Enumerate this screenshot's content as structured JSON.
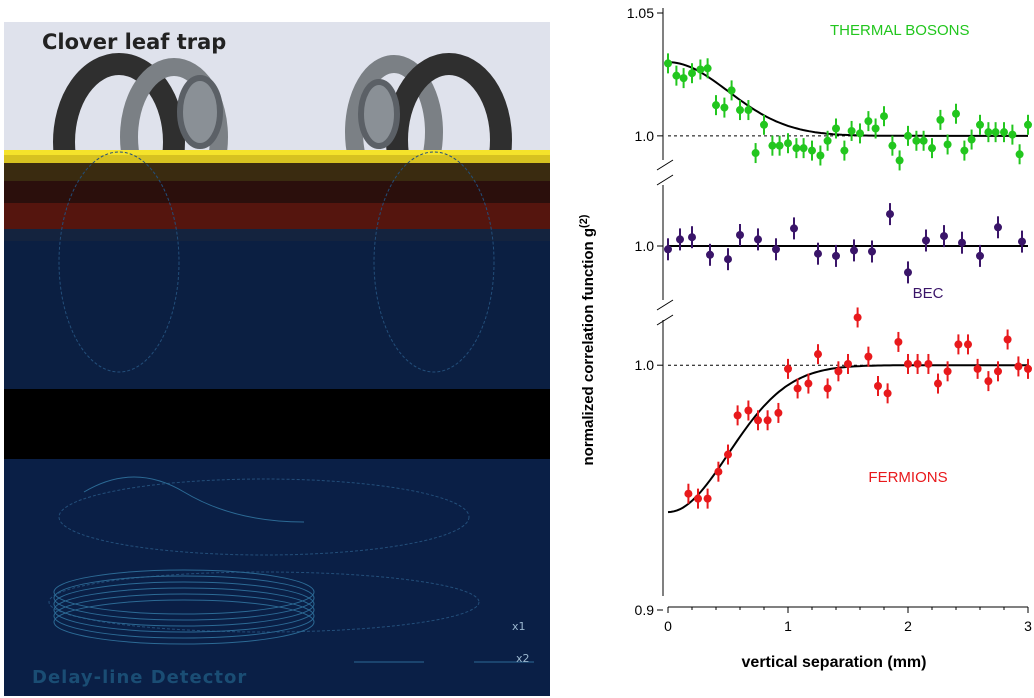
{
  "panel": {
    "title": "Clover leaf trap",
    "detector_label": "Delay-line Detector",
    "wire_label_1": "x1",
    "wire_label_2": "x2"
  },
  "chart_data": {
    "type": "scatter",
    "xlabel": "vertical separation (mm)",
    "ylabel": "normalized correlation function g(2)",
    "xlim": [
      0,
      3
    ],
    "x_ticks": [
      "0",
      "1",
      "2",
      "3"
    ],
    "panels": [
      {
        "name": "THERMAL BOSONS",
        "color": "#22c61e",
        "ylim": [
          0.98,
          1.05
        ],
        "y_ticks": [
          "1.05",
          "1.0"
        ],
        "fit": {
          "baseline": 1.0,
          "amplitude": 0.03,
          "width": 0.5
        },
        "x": [
          0.0,
          0.07,
          0.13,
          0.2,
          0.27,
          0.33,
          0.4,
          0.47,
          0.53,
          0.6,
          0.67,
          0.73,
          0.8,
          0.87,
          0.93,
          1.0,
          1.07,
          1.13,
          1.2,
          1.27,
          1.33,
          1.4,
          1.47,
          1.53,
          1.6,
          1.67,
          1.73,
          1.8,
          1.87,
          1.93,
          2.0,
          2.07,
          2.13,
          2.2,
          2.27,
          2.33,
          2.4,
          2.47,
          2.53,
          2.6,
          2.67,
          2.73,
          2.8,
          2.87,
          2.93,
          3.0
        ],
        "y": [
          1.0295,
          1.0245,
          1.0235,
          1.0255,
          1.027,
          1.0275,
          1.0125,
          1.0115,
          1.0185,
          1.0105,
          1.0105,
          0.993,
          1.0045,
          0.996,
          0.996,
          0.997,
          0.995,
          0.995,
          0.994,
          0.992,
          0.998,
          1.003,
          0.994,
          1.002,
          1.001,
          1.006,
          1.003,
          1.008,
          0.996,
          0.99,
          1.0,
          0.998,
          0.998,
          0.995,
          1.0065,
          0.9965,
          1.009,
          0.994,
          0.9985,
          1.0045,
          1.0015,
          1.0015,
          1.0015,
          1.0005,
          0.9925,
          1.0045
        ]
      },
      {
        "name": "BEC",
        "color": "#3a1569",
        "ylim": [
          0.97,
          1.03
        ],
        "y_ticks": [
          "1.0"
        ],
        "fit": {
          "baseline": 1.0,
          "amplitude": 0.0,
          "width": 0.5
        },
        "x": [
          0.0,
          0.1,
          0.2,
          0.35,
          0.5,
          0.6,
          0.75,
          0.9,
          1.05,
          1.25,
          1.4,
          1.55,
          1.7,
          1.85,
          2.0,
          2.15,
          2.3,
          2.45,
          2.6,
          2.75,
          2.95
        ],
        "y": [
          0.9985,
          1.003,
          1.004,
          0.996,
          0.994,
          1.005,
          1.003,
          0.9985,
          1.008,
          0.9965,
          0.9955,
          0.998,
          0.9975,
          1.0145,
          0.988,
          1.0025,
          1.0045,
          1.0015,
          0.9955,
          1.0085,
          1.002
        ]
      },
      {
        "name": "FERMIONS",
        "color": "#e8191c",
        "ylim": [
          0.9,
          1.025
        ],
        "y_ticks": [
          "1.0",
          "0.9"
        ],
        "fit": {
          "baseline": 1.0,
          "amplitude": -0.06,
          "width": 0.5
        },
        "x": [
          0.17,
          0.25,
          0.33,
          0.42,
          0.5,
          0.58,
          0.67,
          0.75,
          0.83,
          0.92,
          1.0,
          1.08,
          1.17,
          1.25,
          1.33,
          1.42,
          1.5,
          1.58,
          1.67,
          1.75,
          1.83,
          1.92,
          2.0,
          2.08,
          2.17,
          2.25,
          2.33,
          2.42,
          2.5,
          2.58,
          2.67,
          2.75,
          2.83,
          2.92,
          3.0
        ],
        "y": [
          0.9475,
          0.9455,
          0.9455,
          0.9565,
          0.9635,
          0.9795,
          0.9815,
          0.9775,
          0.9775,
          0.9805,
          0.9985,
          0.9905,
          0.9925,
          1.0045,
          0.9905,
          0.9975,
          1.0005,
          1.0195,
          1.0035,
          0.9915,
          0.9885,
          1.0095,
          1.0005,
          1.0005,
          1.0005,
          0.9925,
          0.9975,
          1.0085,
          1.0085,
          0.9985,
          0.9935,
          0.9975,
          1.0105,
          0.9995,
          0.9985
        ]
      }
    ]
  }
}
